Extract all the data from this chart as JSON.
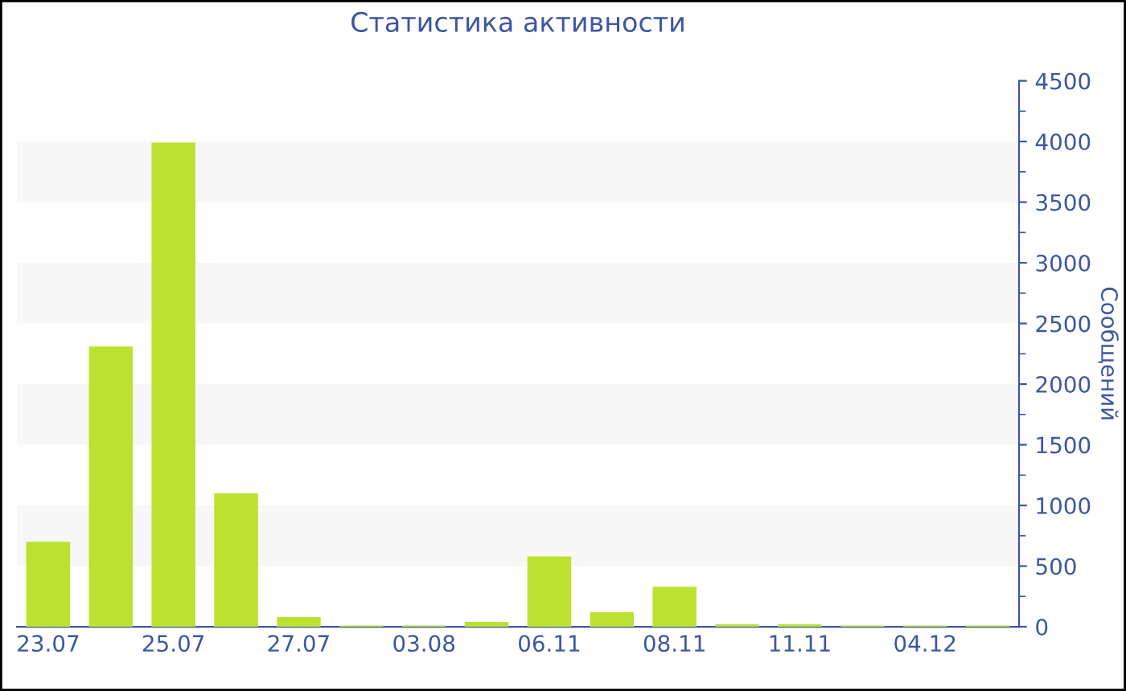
{
  "chart_data": {
    "type": "bar",
    "title": "Статистика активности",
    "y2label": "Сообщений",
    "categories": [
      "23.07",
      null,
      "25.07",
      null,
      "27.07",
      null,
      "03.08",
      null,
      "06.11",
      null,
      "08.11",
      null,
      "11.11",
      null,
      "04.12",
      null
    ],
    "series": [
      {
        "color": "#bce12f",
        "axis": "y2",
        "values": [
          700,
          2310,
          3990,
          1100,
          80,
          10,
          10,
          40,
          580,
          120,
          330,
          20,
          20,
          10,
          10,
          10
        ]
      }
    ],
    "y2lim": [
      0,
      4500
    ],
    "y2ticks": [
      0,
      500,
      1000,
      1500,
      2000,
      2500,
      3000,
      3500,
      4000,
      4500
    ],
    "bands": [
      {
        "axis": "y2",
        "from": 500,
        "to": 1000,
        "color": "#f7f7f7"
      },
      {
        "axis": "y2",
        "from": 1500,
        "to": 2000,
        "color": "#f7f7f7"
      },
      {
        "axis": "y2",
        "from": 2500,
        "to": 3000,
        "color": "#f7f7f7"
      },
      {
        "axis": "y2",
        "from": 3500,
        "to": 4000,
        "color": "#f7f7f7"
      }
    ],
    "grid": false
  }
}
